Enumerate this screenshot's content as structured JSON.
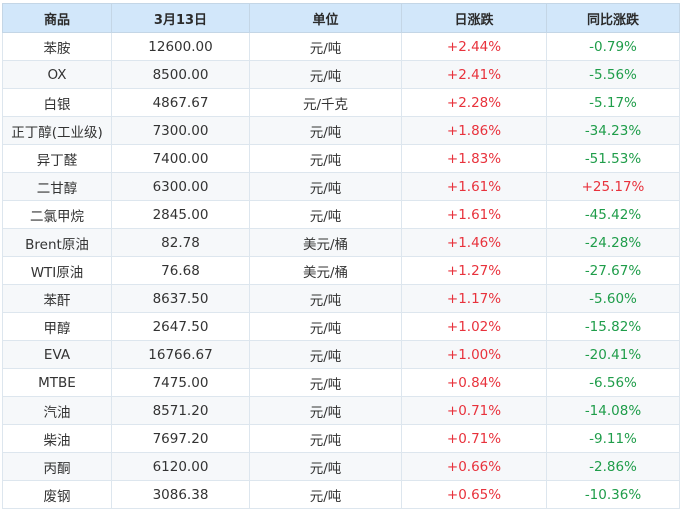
{
  "table": {
    "headers": [
      "商品",
      "3月13日",
      "单位",
      "日涨跌",
      "同比涨跌"
    ],
    "rows": [
      [
        "苯胺",
        "12600.00",
        "元/吨",
        "+2.44%",
        "-0.79%"
      ],
      [
        "OX",
        "8500.00",
        "元/吨",
        "+2.41%",
        "-5.56%"
      ],
      [
        "白银",
        "4867.67",
        "元/千克",
        "+2.28%",
        "-5.17%"
      ],
      [
        "正丁醇(工业级)",
        "7300.00",
        "元/吨",
        "+1.86%",
        "-34.23%"
      ],
      [
        "异丁醛",
        "7400.00",
        "元/吨",
        "+1.83%",
        "-51.53%"
      ],
      [
        "二甘醇",
        "6300.00",
        "元/吨",
        "+1.61%",
        "+25.17%"
      ],
      [
        "二氯甲烷",
        "2845.00",
        "元/吨",
        "+1.61%",
        "-45.42%"
      ],
      [
        "Brent原油",
        "82.78",
        "美元/桶",
        "+1.46%",
        "-24.28%"
      ],
      [
        "WTI原油",
        "76.68",
        "美元/桶",
        "+1.27%",
        "-27.67%"
      ],
      [
        "苯酐",
        "8637.50",
        "元/吨",
        "+1.17%",
        "-5.60%"
      ],
      [
        "甲醇",
        "2647.50",
        "元/吨",
        "+1.02%",
        "-15.82%"
      ],
      [
        "EVA",
        "16766.67",
        "元/吨",
        "+1.00%",
        "-20.41%"
      ],
      [
        "MTBE",
        "7475.00",
        "元/吨",
        "+0.84%",
        "-6.56%"
      ],
      [
        "汽油",
        "8571.20",
        "元/吨",
        "+0.71%",
        "-14.08%"
      ],
      [
        "柴油",
        "7697.20",
        "元/吨",
        "+0.71%",
        "-9.11%"
      ],
      [
        "丙酮",
        "6120.00",
        "元/吨",
        "+0.66%",
        "-2.86%"
      ],
      [
        "废钢",
        "3086.38",
        "元/吨",
        "+0.65%",
        "-10.36%"
      ]
    ]
  },
  "colors": {
    "header_bg": "#d2e7fa",
    "positive": "#e8323c",
    "negative": "#1f9d4a"
  }
}
